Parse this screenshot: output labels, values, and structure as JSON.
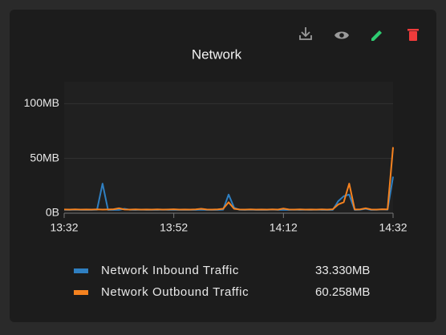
{
  "chart_data": {
    "type": "line",
    "title": "Network",
    "x": [
      "13:32",
      "13:33",
      "13:34",
      "13:35",
      "13:36",
      "13:37",
      "13:38",
      "13:39",
      "13:40",
      "13:41",
      "13:42",
      "13:43",
      "13:44",
      "13:45",
      "13:46",
      "13:47",
      "13:48",
      "13:49",
      "13:50",
      "13:51",
      "13:52",
      "13:53",
      "13:54",
      "13:55",
      "13:56",
      "13:57",
      "13:58",
      "13:59",
      "14:00",
      "14:01",
      "14:02",
      "14:03",
      "14:04",
      "14:05",
      "14:06",
      "14:07",
      "14:08",
      "14:09",
      "14:10",
      "14:11",
      "14:12",
      "14:13",
      "14:14",
      "14:15",
      "14:16",
      "14:17",
      "14:18",
      "14:19",
      "14:20",
      "14:21",
      "14:22",
      "14:23",
      "14:24",
      "14:25",
      "14:26",
      "14:27",
      "14:28",
      "14:29",
      "14:30",
      "14:31",
      "14:32"
    ],
    "series": [
      {
        "name": "Network Inbound Traffic",
        "color": "#2f7fc1",
        "values": [
          3.1,
          3.0,
          3.2,
          3.0,
          3.1,
          3.0,
          3.2,
          27,
          3.0,
          3.1,
          3.0,
          4.0,
          3.1,
          3.0,
          3.2,
          3.0,
          3.1,
          3.0,
          3.2,
          3.0,
          3.1,
          3.0,
          3.1,
          3.0,
          3.0,
          3.2,
          3.0,
          3.1,
          3.0,
          3.2,
          17,
          5,
          3.1,
          3.0,
          3.2,
          3.0,
          3.1,
          3.0,
          3.3,
          3.0,
          3.1,
          3.0,
          3.2,
          3.0,
          3.1,
          3.0,
          3.2,
          3.0,
          3.1,
          3.0,
          11,
          15.5,
          17,
          3.0,
          3.2,
          4.0,
          3.0,
          3.1,
          3.5,
          3.2,
          33.33
        ],
        "value_labels": [
          null,
          null,
          null,
          null,
          null,
          null,
          null,
          null,
          null,
          null,
          null,
          null,
          null,
          null,
          null,
          null,
          null,
          null,
          null,
          null,
          null,
          null,
          null,
          null,
          null,
          null,
          null,
          null,
          null,
          null,
          null,
          null,
          null,
          null,
          null,
          null,
          null,
          null,
          null,
          null,
          null,
          null,
          null,
          null,
          null,
          null,
          null,
          null,
          null,
          null,
          null,
          null,
          null,
          null,
          null,
          null,
          null,
          null,
          null,
          null,
          "33.330MB"
        ]
      },
      {
        "name": "Network Outbound Traffic",
        "color": "#f5821f",
        "values": [
          3.4,
          3.3,
          3.5,
          3.3,
          3.4,
          3.3,
          3.5,
          3.3,
          3.4,
          3.6,
          4.5,
          3.4,
          3.3,
          3.5,
          3.3,
          3.4,
          3.3,
          3.5,
          3.3,
          3.4,
          3.6,
          3.3,
          3.4,
          3.3,
          3.5,
          4.0,
          3.4,
          3.3,
          3.5,
          4,
          10,
          4,
          3.4,
          3.3,
          3.5,
          3.3,
          3.4,
          3.3,
          3.5,
          3.3,
          4.2,
          3.4,
          3.3,
          3.5,
          3.3,
          3.4,
          3.3,
          3.5,
          3.3,
          3.6,
          8,
          10,
          27,
          3.4,
          3.5,
          4.5,
          3.4,
          3.3,
          3.6,
          3.5,
          60.258
        ],
        "value_labels": [
          null,
          null,
          null,
          null,
          null,
          null,
          null,
          null,
          null,
          null,
          null,
          null,
          null,
          null,
          null,
          null,
          null,
          null,
          null,
          null,
          null,
          null,
          null,
          null,
          null,
          null,
          null,
          null,
          null,
          null,
          null,
          null,
          null,
          null,
          null,
          null,
          null,
          null,
          null,
          null,
          null,
          null,
          null,
          null,
          null,
          null,
          null,
          null,
          null,
          null,
          null,
          null,
          null,
          null,
          null,
          null,
          null,
          null,
          null,
          null,
          "60.258MB"
        ]
      }
    ],
    "xlim": [
      "13:32",
      "14:32"
    ],
    "xticks": [
      "13:32",
      "13:52",
      "14:12",
      "14:32"
    ],
    "ylim": [
      0,
      120
    ],
    "yticks": [
      {
        "value": 0,
        "label": "0B"
      },
      {
        "value": 50,
        "label": "50MB"
      },
      {
        "value": 100,
        "label": "100MB"
      }
    ],
    "grid": true
  }
}
